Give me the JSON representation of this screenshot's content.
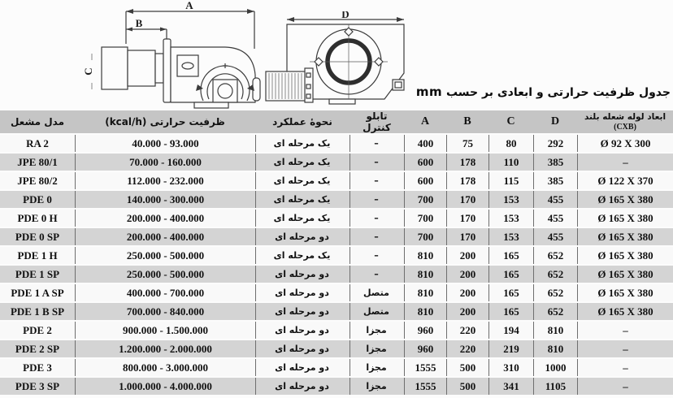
{
  "title": {
    "text": "جدول ظرفیت حرارتی و ابعادی بر حسب",
    "unit": "mm"
  },
  "diagrams": {
    "side_view": {
      "dim_a": "A",
      "dim_b": "B",
      "dim_c": "C"
    },
    "front_view": {
      "dim_d": "D"
    }
  },
  "table": {
    "headers": {
      "model": "مدل مشعل",
      "capacity": "ظرفیت حرارتی (kcal/h)",
      "operation": "نحوهٔ عملکرد",
      "control_panel": "تابلو کنترل",
      "a": "A",
      "b": "B",
      "c": "C",
      "d": "D",
      "flame_tube_line1": "ابعاد لوله شعله بلند",
      "flame_tube_line2": "(CXB)"
    },
    "rows": [
      {
        "model": "RA 2",
        "capacity": "40.000 - 93.000",
        "operation": "یک مرحله ای",
        "control": "–",
        "a": "400",
        "b": "75",
        "c": "80",
        "d": "292",
        "cxb": "Ø 92 X 300"
      },
      {
        "model": "JPE 80/1",
        "capacity": "70.000 - 160.000",
        "operation": "یک مرحله ای",
        "control": "–",
        "a": "600",
        "b": "178",
        "c": "110",
        "d": "385",
        "cxb": "–"
      },
      {
        "model": "JPE 80/2",
        "capacity": "112.000 - 232.000",
        "operation": "یک مرحله ای",
        "control": "–",
        "a": "600",
        "b": "178",
        "c": "115",
        "d": "385",
        "cxb": "Ø 122 X 370"
      },
      {
        "model": "PDE 0",
        "capacity": "140.000 - 300.000",
        "operation": "یک مرحله ای",
        "control": "–",
        "a": "700",
        "b": "170",
        "c": "153",
        "d": "455",
        "cxb": "Ø 165 X 380"
      },
      {
        "model": "PDE 0 H",
        "capacity": "200.000 - 400.000",
        "operation": "یک مرحله ای",
        "control": "–",
        "a": "700",
        "b": "170",
        "c": "153",
        "d": "455",
        "cxb": "Ø 165 X 380"
      },
      {
        "model": "PDE 0 SP",
        "capacity": "200.000 - 400.000",
        "operation": "دو مرحله ای",
        "control": "–",
        "a": "700",
        "b": "170",
        "c": "153",
        "d": "455",
        "cxb": "Ø 165 X 380"
      },
      {
        "model": "PDE 1 H",
        "capacity": "250.000 - 500.000",
        "operation": "یک مرحله ای",
        "control": "–",
        "a": "810",
        "b": "200",
        "c": "165",
        "d": "652",
        "cxb": "Ø 165 X 380"
      },
      {
        "model": "PDE 1 SP",
        "capacity": "250.000 - 500.000",
        "operation": "دو مرحله ای",
        "control": "–",
        "a": "810",
        "b": "200",
        "c": "165",
        "d": "652",
        "cxb": "Ø 165 X 380"
      },
      {
        "model": "PDE 1 A SP",
        "capacity": "400.000 - 700.000",
        "operation": "دو مرحله ای",
        "control": "متصل",
        "a": "810",
        "b": "200",
        "c": "165",
        "d": "652",
        "cxb": "Ø 165 X 380"
      },
      {
        "model": "PDE 1 B SP",
        "capacity": "700.000 - 840.000",
        "operation": "دو مرحله ای",
        "control": "متصل",
        "a": "810",
        "b": "200",
        "c": "165",
        "d": "652",
        "cxb": "Ø 165 X 380"
      },
      {
        "model": "PDE 2",
        "capacity": "900.000 - 1.500.000",
        "operation": "دو مرحله ای",
        "control": "مجزا",
        "a": "960",
        "b": "220",
        "c": "194",
        "d": "810",
        "cxb": "–"
      },
      {
        "model": "PDE 2 SP",
        "capacity": "1.200.000 - 2.000.000",
        "operation": "دو مرحله ای",
        "control": "مجزا",
        "a": "960",
        "b": "220",
        "c": "219",
        "d": "810",
        "cxb": "–"
      },
      {
        "model": "PDE 3",
        "capacity": "800.000 - 3.000.000",
        "operation": "دو مرحله ای",
        "control": "مجزا",
        "a": "1555",
        "b": "500",
        "c": "310",
        "d": "1000",
        "cxb": "–"
      },
      {
        "model": "PDE 3 SP",
        "capacity": "1.000.000 - 4.000.000",
        "operation": "دو مرحله ای",
        "control": "مجزا",
        "a": "1555",
        "b": "500",
        "c": "341",
        "d": "1105",
        "cxb": "–"
      }
    ]
  }
}
